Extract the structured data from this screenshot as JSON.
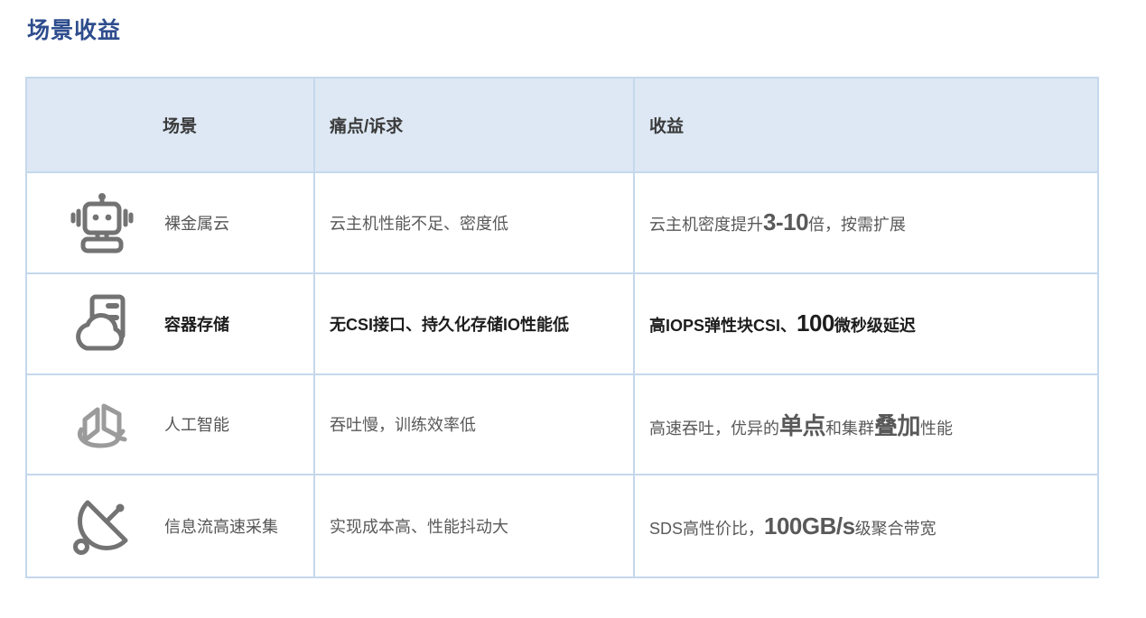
{
  "page_title": "场景收益",
  "colors": {
    "title_text": "#2e4d8d",
    "header_background": "#dde8f4",
    "table_border": "#c5d8ec",
    "body_text": "#595959",
    "bold_row_text": "#1d1d1d",
    "icon_gray": "#737373"
  },
  "table": {
    "headers": {
      "scenario": "场景",
      "pain": "痛点/诉求",
      "benefit": "收益"
    },
    "rows": [
      {
        "icon": "robot-icon",
        "scenario": "裸金属云",
        "pain": "云主机性能不足、密度低",
        "benefit": [
          {
            "text": "云主机密度提升"
          },
          {
            "text": "3-10",
            "strong": true
          },
          {
            "text": "倍，按需扩展"
          }
        ]
      },
      {
        "icon": "cloud-server-icon",
        "scenario": "容器存储",
        "pain": "无CSI接口、持久化存储IO性能低",
        "benefit": [
          {
            "text": "高IOPS弹性块CSI、"
          },
          {
            "text": "100",
            "strong": true
          },
          {
            "text": "微秒级延迟"
          }
        ]
      },
      {
        "icon": "ai-panels-icon",
        "scenario": "人工智能",
        "pain": "吞吐慢，训练效率低",
        "benefit": [
          {
            "text": "高速吞吐，优异的"
          },
          {
            "text": "单点",
            "strong": true
          },
          {
            "text": "和集群"
          },
          {
            "text": "叠加",
            "strong": true
          },
          {
            "text": "性能"
          }
        ]
      },
      {
        "icon": "satellite-dish-icon",
        "scenario": "信息流高速采集",
        "pain": "实现成本高、性能抖动大",
        "benefit": [
          {
            "text": "SDS高性价比，"
          },
          {
            "text": "100GB/s",
            "strong": true
          },
          {
            "text": "级聚合带宽"
          }
        ]
      }
    ]
  }
}
